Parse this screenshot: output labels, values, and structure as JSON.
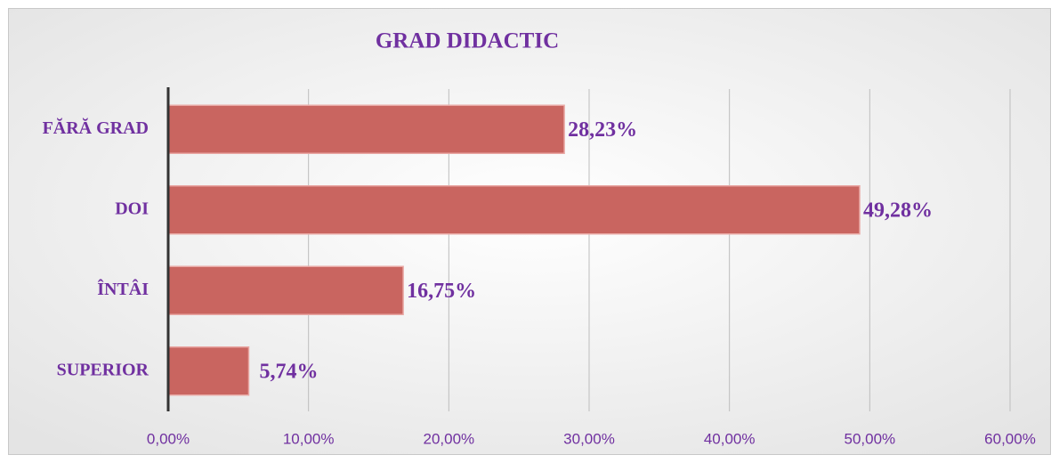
{
  "chart_data": {
    "type": "bar",
    "orientation": "horizontal",
    "title": "GRAD DIDACTIC",
    "categories": [
      "FĂRĂ GRAD",
      "DOI",
      "ÎNTÂI",
      "SUPERIOR"
    ],
    "values": [
      28.23,
      49.28,
      16.75,
      5.74
    ],
    "value_labels": [
      "28,23%",
      "49,28%",
      "16,75%",
      "5,74%"
    ],
    "color": "#c96560",
    "xlim": [
      0,
      60
    ],
    "xticks": [
      {
        "value": 0,
        "label": "0,00%"
      },
      {
        "value": 10,
        "label": "10,00%"
      },
      {
        "value": 20,
        "label": "20,00%"
      },
      {
        "value": 30,
        "label": "30,00%"
      },
      {
        "value": 40,
        "label": "40,00%"
      },
      {
        "value": 50,
        "label": "50,00%"
      },
      {
        "value": 60,
        "label": "60,00%"
      }
    ],
    "grid": true
  }
}
